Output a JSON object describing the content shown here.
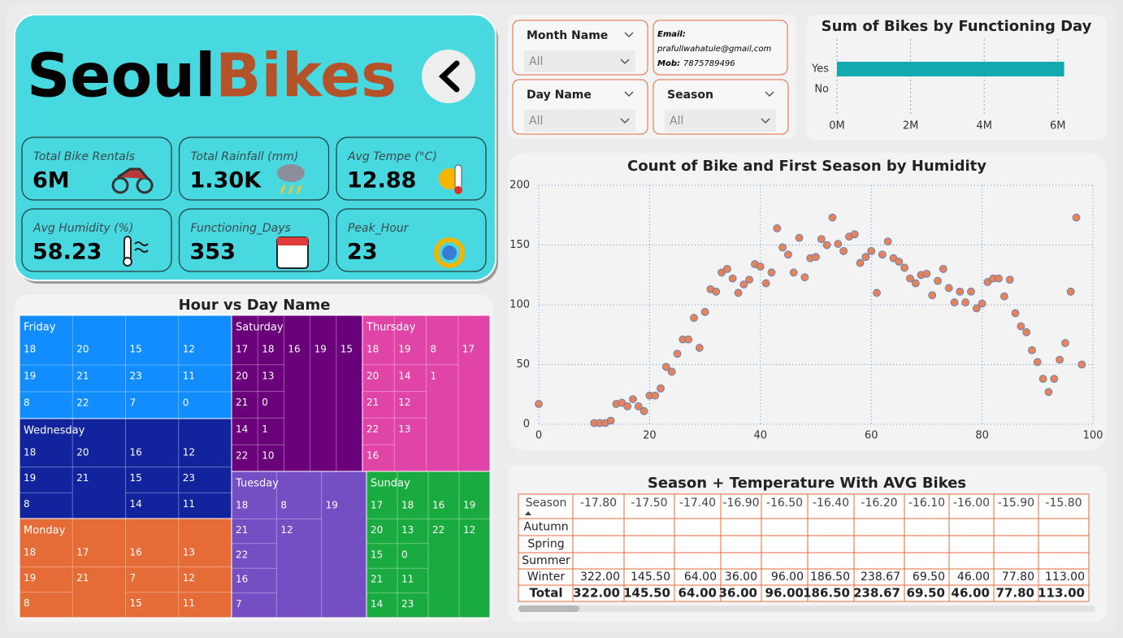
{
  "header": {
    "title_part1": "Seoul",
    "title_part2": "Bikes"
  },
  "kpis": [
    {
      "label": "Total Bike Rentals",
      "value": "6M"
    },
    {
      "label": "Total Rainfall (mm)",
      "value": "1.30K"
    },
    {
      "label": "Avg Tempe (°C)",
      "value": "12.88"
    },
    {
      "label": "Avg Humidity (%)",
      "value": "58.23"
    },
    {
      "label": "Functioning_Days",
      "value": "353"
    },
    {
      "label": "Peak_Hour",
      "value": "23"
    }
  ],
  "filters": [
    {
      "label": "Month Name",
      "value": "All"
    },
    {
      "label": "Day Name",
      "value": "All"
    },
    {
      "label": "Season",
      "value": "All"
    }
  ],
  "contact": {
    "email_label": "Email:",
    "email": "prafullwahatule@gmail,com",
    "mobile_label": "Mob:",
    "mobile": "7875789496"
  },
  "chart_data": [
    {
      "type": "bar",
      "orientation": "horizontal",
      "title": "Sum of Bikes by Functioning Day",
      "categories": [
        "Yes",
        "No"
      ],
      "values": [
        6172314,
        0
      ],
      "color": "#12a9b1",
      "xlim": [
        0,
        6800000
      ],
      "xticks": [
        {
          "value": 0,
          "label": "0M"
        },
        {
          "value": 2000000,
          "label": "2M"
        },
        {
          "value": 4000000,
          "label": "4M"
        },
        {
          "value": 6000000,
          "label": "6M"
        }
      ],
      "grid": true
    },
    {
      "type": "scatter",
      "title": "Count of Bike and First Season by Humidity",
      "x": [
        0,
        10,
        11,
        12,
        13,
        14,
        15,
        16,
        17,
        18,
        19,
        20,
        21,
        22,
        23,
        24,
        25,
        26,
        27,
        28,
        29,
        30,
        31,
        32,
        33,
        34,
        35,
        36,
        37,
        38,
        39,
        40,
        41,
        42,
        43,
        44,
        45,
        46,
        47,
        48,
        49,
        50,
        51,
        52,
        53,
        54,
        55,
        56,
        57,
        58,
        59,
        60,
        61,
        62,
        63,
        64,
        65,
        66,
        67,
        68,
        69,
        70,
        71,
        72,
        73,
        74,
        75,
        76,
        77,
        78,
        79,
        80,
        81,
        82,
        83,
        84,
        85,
        86,
        87,
        88,
        89,
        90,
        91,
        92,
        93,
        94,
        95,
        96,
        97,
        98
      ],
      "values": [
        17,
        1,
        1,
        1,
        3,
        17,
        18,
        15,
        21,
        15,
        11,
        24,
        24,
        30,
        48,
        44,
        59,
        71,
        71,
        89,
        64,
        94,
        113,
        111,
        127,
        130,
        122,
        110,
        117,
        121,
        134,
        132,
        118,
        127,
        164,
        148,
        142,
        127,
        156,
        123,
        139,
        140,
        155,
        150,
        173,
        151,
        145,
        157,
        159,
        135,
        140,
        145,
        110,
        142,
        153,
        139,
        136,
        131,
        122,
        118,
        125,
        126,
        108,
        120,
        130,
        114,
        102,
        111,
        102,
        111,
        97,
        101,
        119,
        122,
        122,
        107,
        121,
        93,
        82,
        77,
        62,
        52,
        38,
        27,
        38,
        54,
        68,
        111,
        173,
        50
      ],
      "color": "#e8825a",
      "edge_color": "#4a7fc1",
      "xlim": [
        0,
        100
      ],
      "ylim": [
        0,
        200
      ],
      "xticks": [
        0,
        20,
        40,
        60,
        80,
        100
      ],
      "yticks": [
        0,
        50,
        100,
        150,
        200
      ],
      "grid": true
    },
    {
      "type": "treemap",
      "title": "Hour vs Day Name",
      "groups": [
        {
          "name": "Friday",
          "color": "#118dff",
          "hours": [
            [
              18,
              19,
              8
            ],
            [
              20,
              21,
              22
            ],
            [
              15,
              23,
              7
            ],
            [
              12,
              11,
              0
            ]
          ]
        },
        {
          "name": "Wednesday",
          "color": "#12239e",
          "hours": [
            [
              18,
              19,
              8
            ],
            [
              20,
              21
            ],
            [
              16,
              15,
              14
            ],
            [
              12,
              23,
              11
            ]
          ]
        },
        {
          "name": "Monday",
          "color": "#e66c37",
          "hours": [
            [
              18,
              19,
              8
            ],
            [
              17,
              21
            ],
            [
              16,
              7,
              15
            ],
            [
              13,
              12,
              11
            ]
          ]
        },
        {
          "name": "Saturday",
          "color": "#6b007b",
          "hours": [
            [
              17,
              20,
              21,
              14,
              22
            ],
            [
              18,
              13,
              0,
              1,
              10
            ],
            [
              16
            ],
            [
              19
            ],
            [
              15
            ]
          ]
        },
        {
          "name": "Thursday",
          "color": "#e044a7",
          "hours": [
            [
              18,
              20,
              21,
              22,
              16
            ],
            [
              19,
              14,
              12,
              13
            ],
            [
              8,
              1
            ],
            [
              17
            ]
          ]
        },
        {
          "name": "Tuesday",
          "color": "#744ec2",
          "hours": [
            [
              18,
              21,
              22,
              16,
              7
            ],
            [
              8,
              12
            ],
            [
              19
            ]
          ]
        },
        {
          "name": "Sunday",
          "color": "#1aab40",
          "hours": [
            [
              17,
              20,
              15,
              21,
              14
            ],
            [
              18,
              13,
              0,
              11,
              23
            ],
            [
              16,
              22
            ],
            [
              19,
              12
            ]
          ]
        }
      ]
    }
  ],
  "table": {
    "title": "Season + Temperature With AVG Bikes",
    "columns": [
      "Season",
      "-17.80",
      "-17.50",
      "-17.40",
      "-16.90",
      "-16.50",
      "-16.40",
      "-16.20",
      "-16.10",
      "-16.00",
      "-15.90",
      "-15.80"
    ],
    "rows": [
      [
        "Autumn",
        null,
        null,
        null,
        null,
        null,
        null,
        null,
        null,
        null,
        null,
        null
      ],
      [
        "Spring",
        null,
        null,
        null,
        null,
        null,
        null,
        null,
        null,
        null,
        null,
        null
      ],
      [
        "Summer",
        null,
        null,
        null,
        null,
        null,
        null,
        null,
        null,
        null,
        null,
        null
      ],
      [
        "Winter",
        "322.00",
        "145.50",
        "64.00",
        "36.00",
        "96.00",
        "186.50",
        "238.67",
        "69.50",
        "46.00",
        "77.80",
        "113.00"
      ],
      [
        "Total",
        "322.00",
        "145.50",
        "64.00",
        "36.00",
        "96.00",
        "186.50",
        "238.67",
        "69.50",
        "46.00",
        "77.80",
        "113.00"
      ]
    ]
  }
}
